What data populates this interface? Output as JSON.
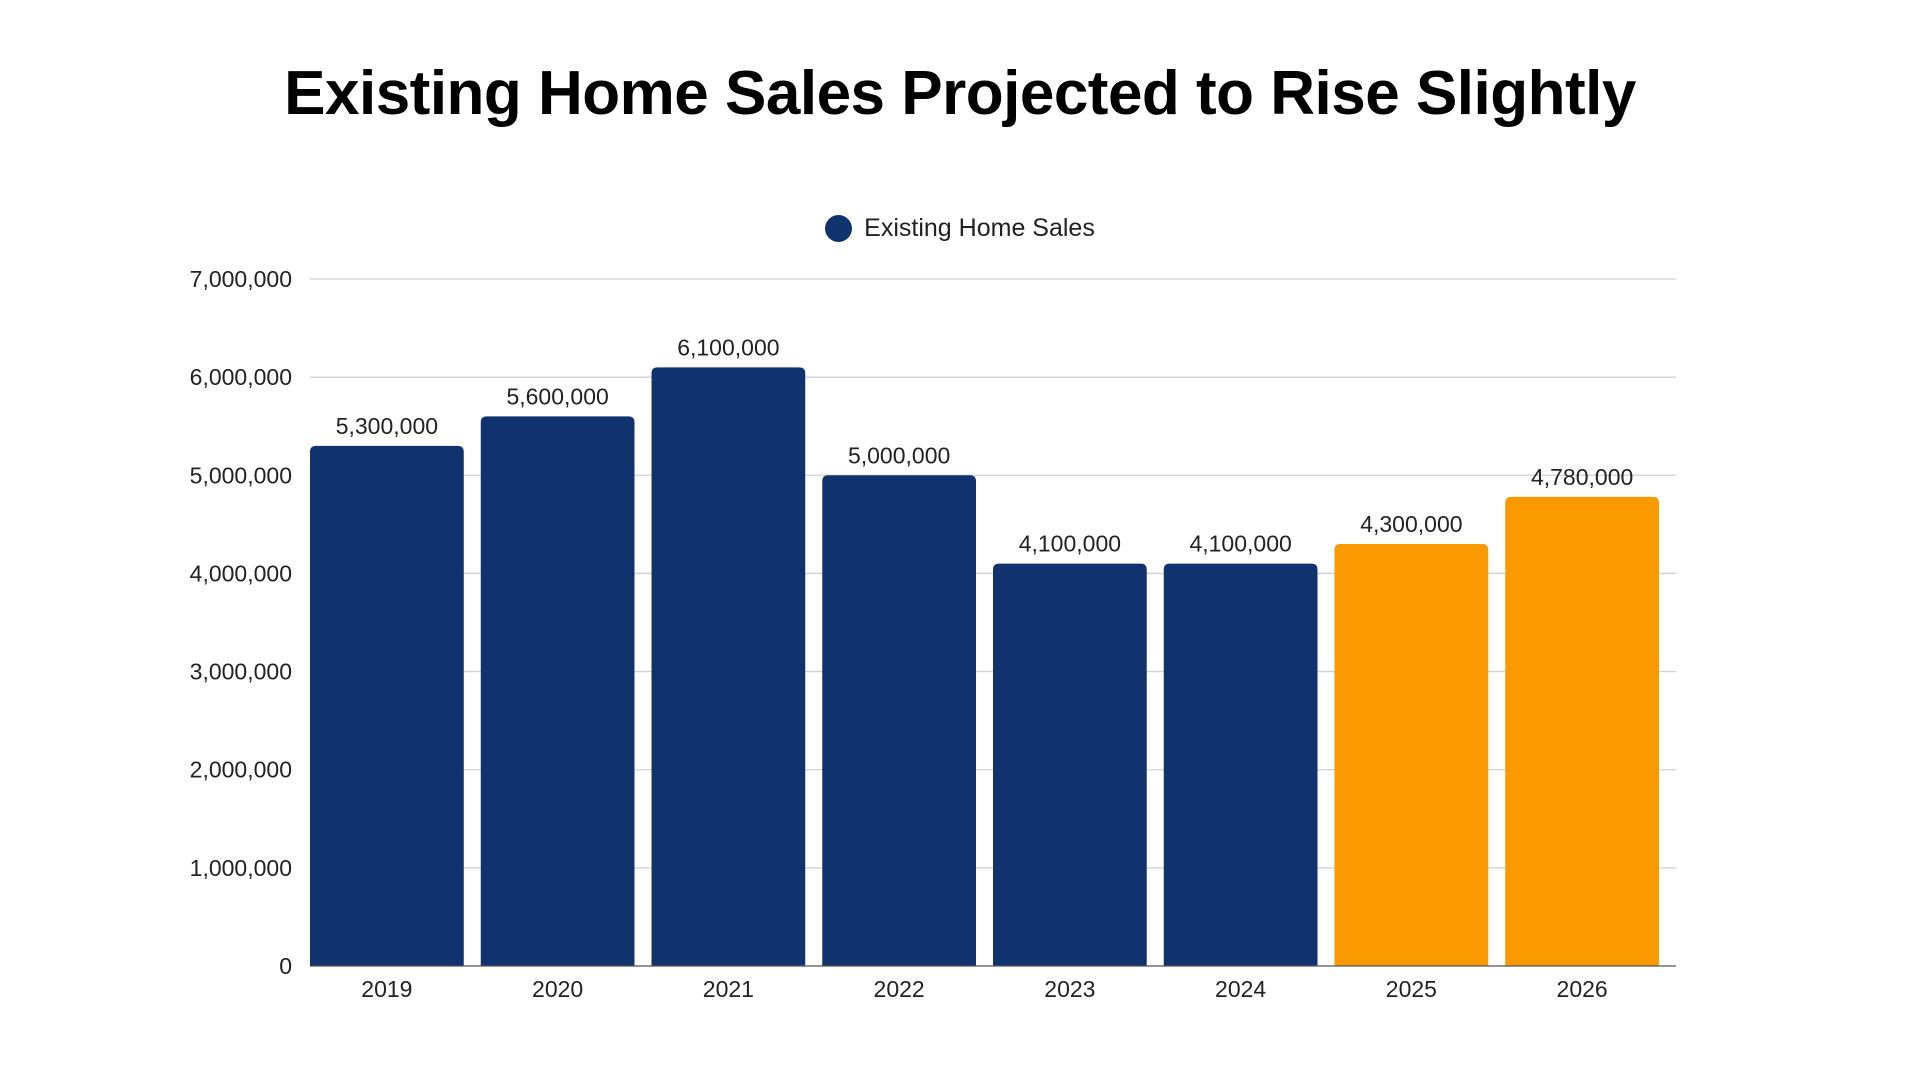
{
  "chart_data": {
    "type": "bar",
    "title": "Existing Home Sales Projected to Rise Slightly",
    "legend": {
      "position": "top",
      "entries": [
        {
          "name": "Existing Home Sales",
          "color": "#10326E"
        }
      ]
    },
    "categories": [
      "2019",
      "2020",
      "2021",
      "2022",
      "2023",
      "2024",
      "2025",
      "2026"
    ],
    "series": [
      {
        "name": "Existing Home Sales",
        "values": [
          5300000,
          5600000,
          6100000,
          5000000,
          4100000,
          4100000,
          4300000,
          4780000
        ],
        "data_labels": [
          "5,300,000",
          "5,600,000",
          "6,100,000",
          "5,000,000",
          "4,100,000",
          "4,100,000",
          "4,300,000",
          "4,780,000"
        ],
        "colors": [
          "#10326E",
          "#10326E",
          "#10326E",
          "#10326E",
          "#10326E",
          "#10326E",
          "#FA9A00",
          "#FA9A00"
        ]
      }
    ],
    "ylim": [
      0,
      7000000
    ],
    "yticks": [
      0,
      1000000,
      2000000,
      3000000,
      4000000,
      5000000,
      6000000,
      7000000
    ],
    "ytick_labels": [
      "0",
      "1,000,000",
      "2,000,000",
      "3,000,000",
      "4,000,000",
      "5,000,000",
      "6,000,000",
      "7,000,000"
    ],
    "grid": true,
    "xlabel": "",
    "ylabel": ""
  }
}
